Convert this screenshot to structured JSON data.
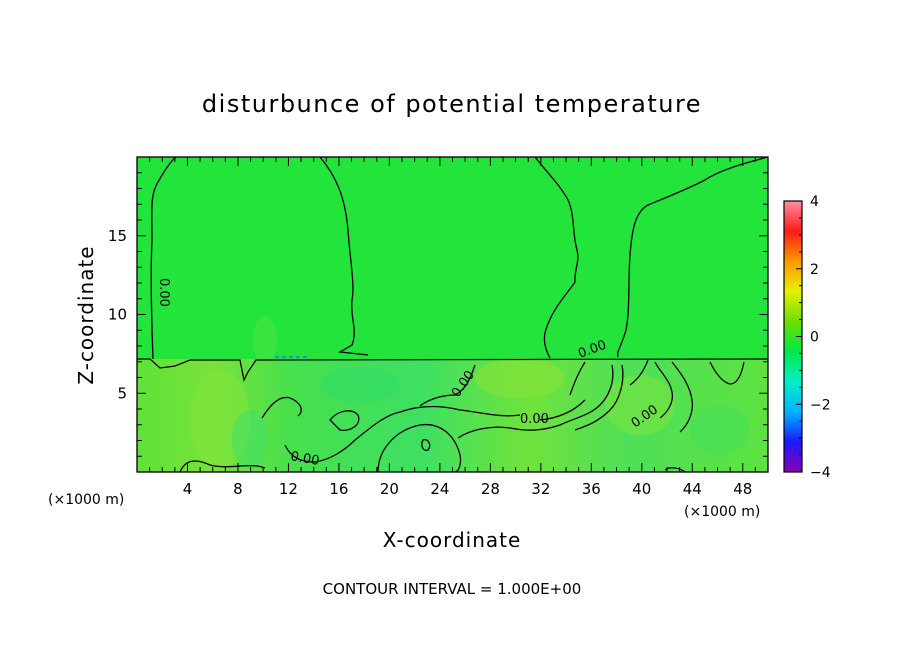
{
  "chart_data": {
    "type": "heatmap",
    "title": "disturbunce of potential temperature",
    "xlabel": "X-coordinate",
    "ylabel": "Z-coordinate",
    "x_unit": "(×1000 m)",
    "x_unit_right": "(×1000 m)",
    "xlim": [
      0,
      50
    ],
    "ylim": [
      0,
      20
    ],
    "x_ticks": [
      4,
      8,
      12,
      16,
      20,
      24,
      28,
      32,
      36,
      40,
      44,
      48
    ],
    "y_ticks": [
      5,
      10,
      15
    ],
    "colorbar": {
      "range": [
        -4,
        4
      ],
      "ticks": [
        -4,
        -2,
        0,
        2,
        4
      ],
      "colors": [
        "#8a00b0",
        "#1a1aff",
        "#00b4ff",
        "#00f0c8",
        "#00e84a",
        "#6be000",
        "#e8f000",
        "#ff9900",
        "#ff1a1a",
        "#ff8fa0"
      ]
    },
    "contour_interval_text": "CONTOUR INTERVAL = 1.000E+00",
    "contour_labels": [
      "0.00",
      "0.00",
      "0.00",
      "0.00",
      "0.00",
      "0.00",
      "0.00"
    ],
    "field_summary": {
      "upper_layer_value": 0.0,
      "lower_layer_value_range": [
        -0.3,
        0.8
      ],
      "layer_interface_z": 7.2
    },
    "grid": false,
    "legend": "colorbar right"
  }
}
